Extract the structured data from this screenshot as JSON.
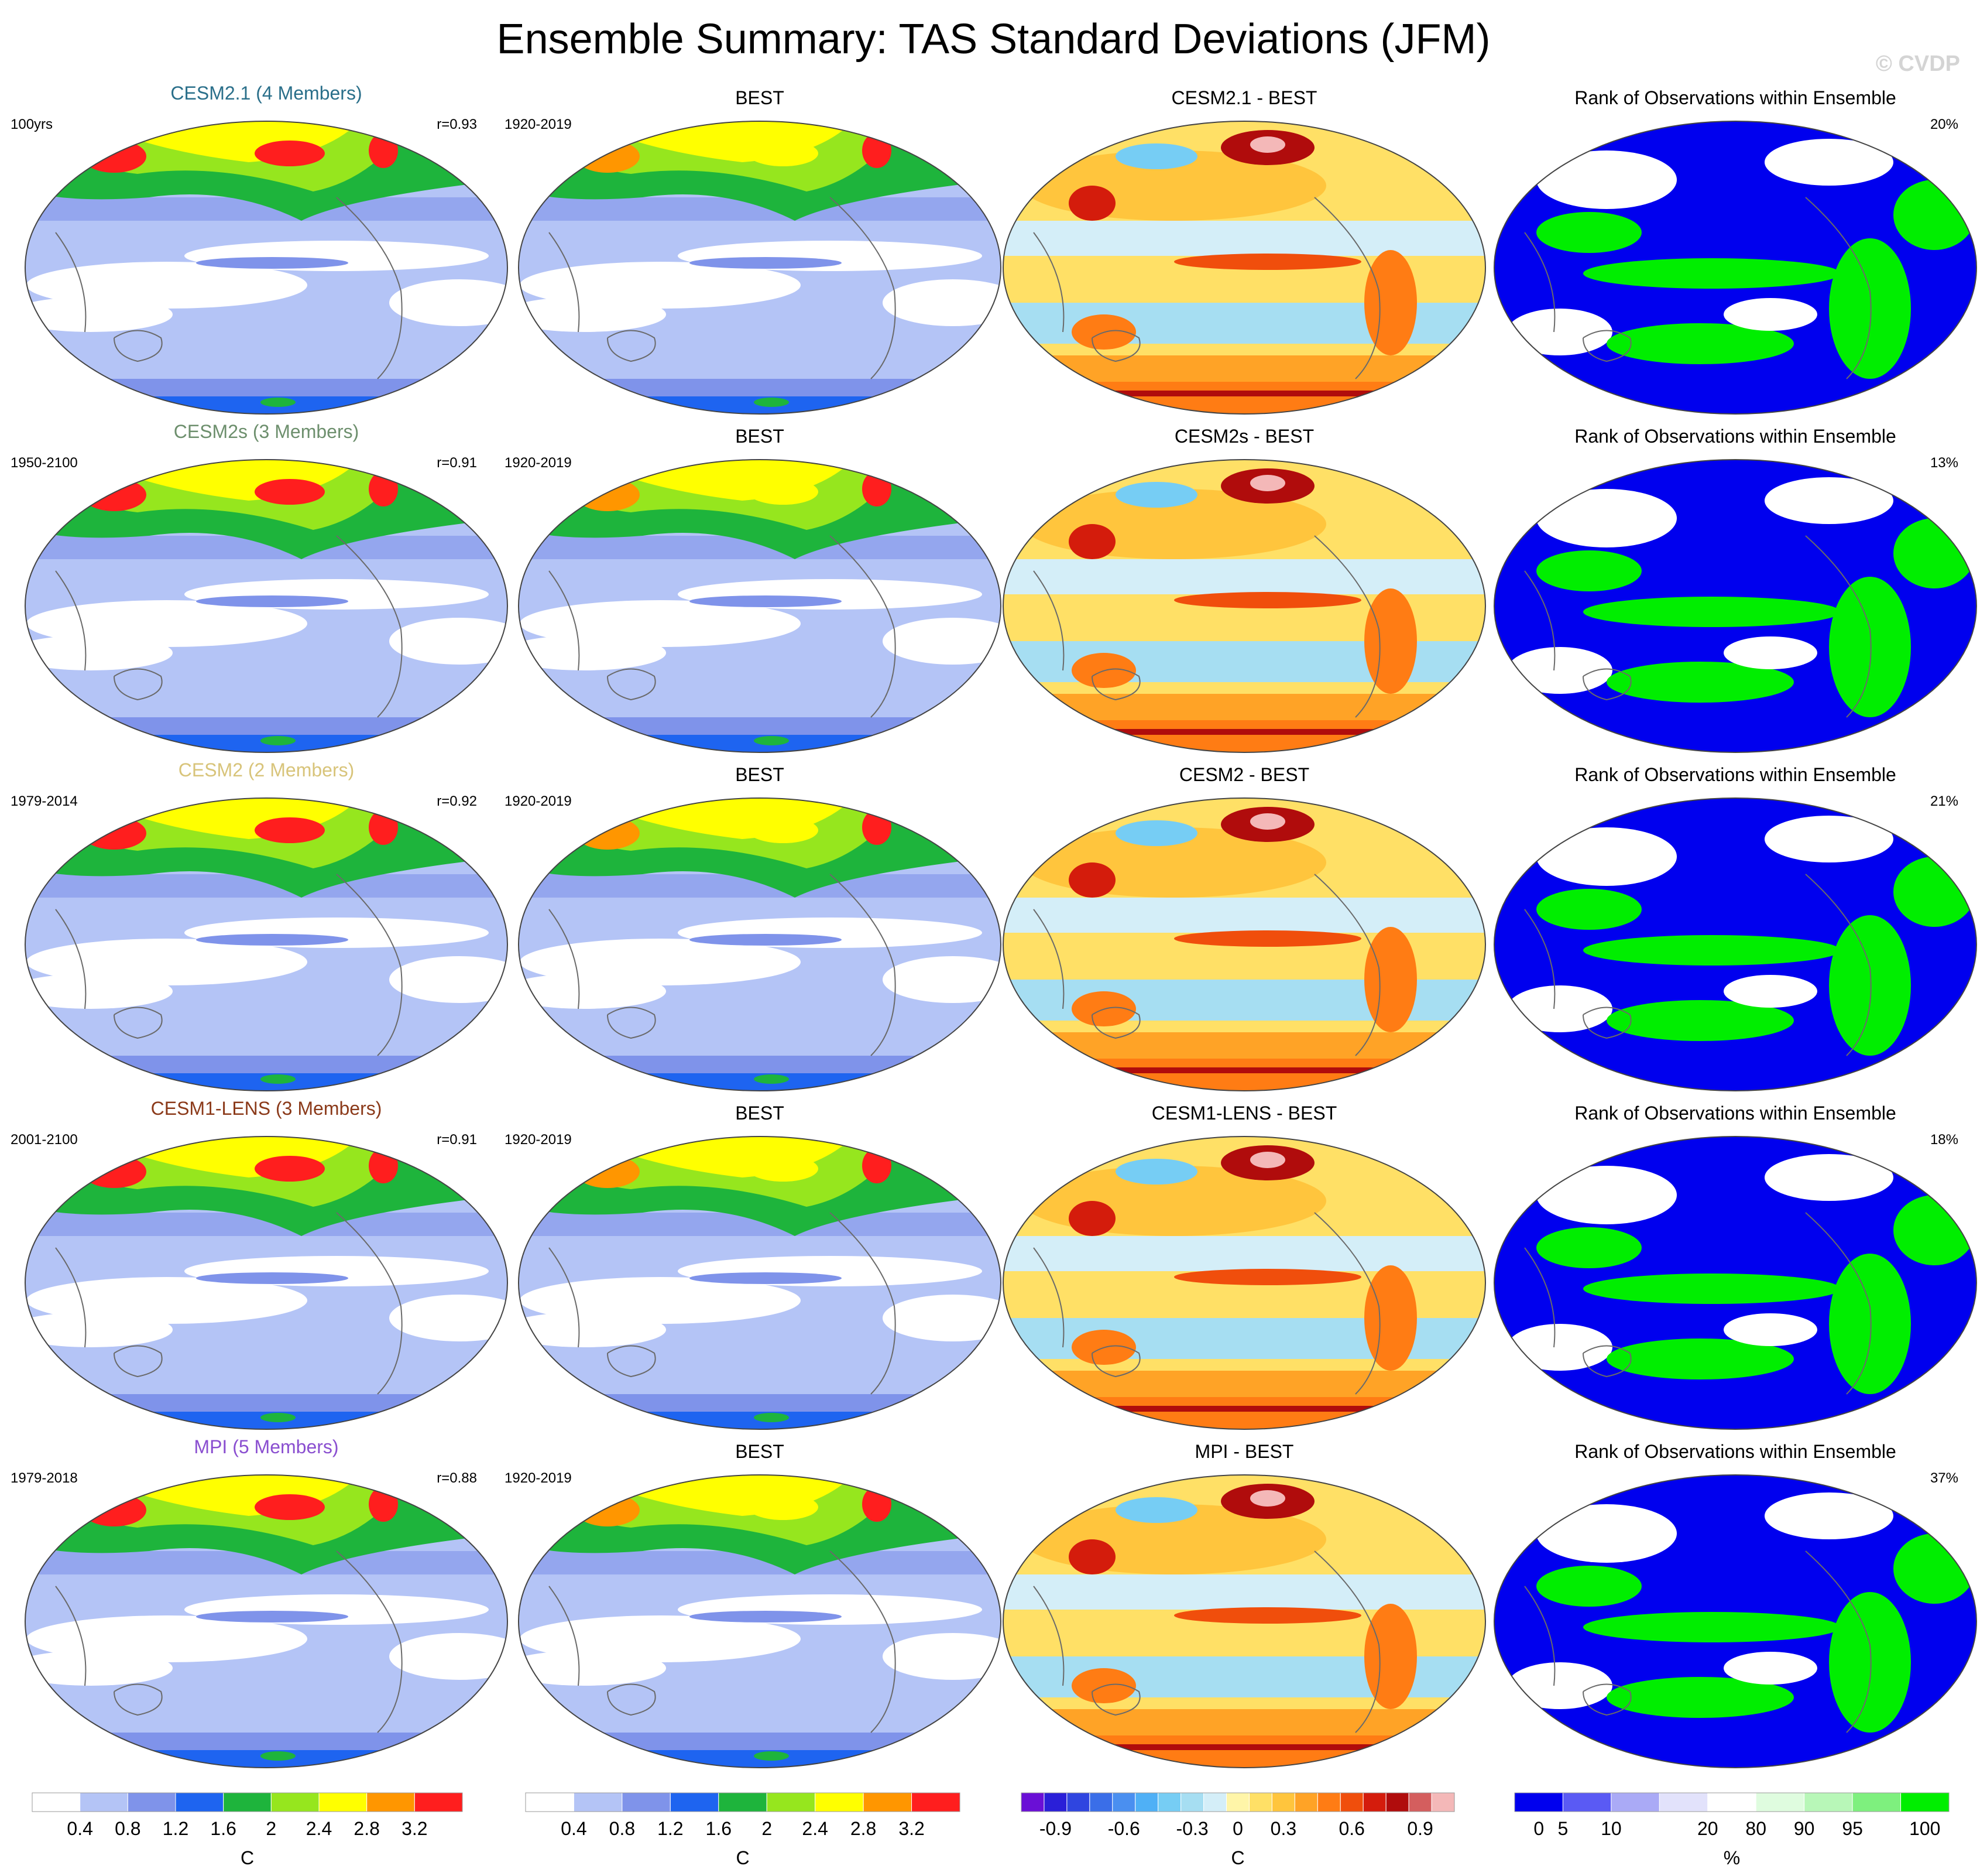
{
  "title": "Ensemble Summary: TAS Standard Deviations (JFM)",
  "watermark": "© CVDP",
  "rows": [
    {
      "model": "CESM2.1 (4 Members)",
      "model_color": "#2a6f8a",
      "period": "100yrs",
      "r": "r=0.93",
      "obs": "BEST",
      "obs_period": "1920-2019",
      "diff_title": "CESM2.1 - BEST",
      "rank_title": "Rank of Observations within Ensemble",
      "rank_pct": "20%"
    },
    {
      "model": "CESM2s (3 Members)",
      "model_color": "#6d8f6d",
      "period": "1950-2100",
      "r": "r=0.91",
      "obs": "BEST",
      "obs_period": "1920-2019",
      "diff_title": "CESM2s - BEST",
      "rank_title": "Rank of Observations within Ensemble",
      "rank_pct": "13%"
    },
    {
      "model": "CESM2 (2 Members)",
      "model_color": "#d8c47a",
      "period": "1979-2014",
      "r": "r=0.92",
      "obs": "BEST",
      "obs_period": "1920-2019",
      "diff_title": "CESM2 - BEST",
      "rank_title": "Rank of Observations within Ensemble",
      "rank_pct": "21%"
    },
    {
      "model": "CESM1-LENS (3 Members)",
      "model_color": "#8b3a1a",
      "period": "2001-2100",
      "r": "r=0.91",
      "obs": "BEST",
      "obs_period": "1920-2019",
      "diff_title": "CESM1-LENS - BEST",
      "rank_title": "Rank of Observations within Ensemble",
      "rank_pct": "18%"
    },
    {
      "model": "MPI (5 Members)",
      "model_color": "#8a4fd0",
      "period": "1979-2018",
      "r": "r=0.88",
      "obs": "BEST",
      "obs_period": "1920-2019",
      "diff_title": "MPI - BEST",
      "rank_title": "Rank of Observations within Ensemble",
      "rank_pct": "37%"
    }
  ],
  "colorbars": [
    {
      "unit": "C",
      "labels": [
        "0.4",
        "0.8",
        "1.2",
        "1.6",
        "2",
        "2.4",
        "2.8",
        "3.2"
      ],
      "colors": [
        "#ffffff",
        "#b4c4f6",
        "#7f93ea",
        "#1e64f0",
        "#1eb43c",
        "#96e61e",
        "#ffff00",
        "#ff9600",
        "#ff1e1e"
      ]
    },
    {
      "unit": "C",
      "labels": [
        "0.4",
        "0.8",
        "1.2",
        "1.6",
        "2",
        "2.4",
        "2.8",
        "3.2"
      ],
      "colors": [
        "#ffffff",
        "#b4c4f6",
        "#7f93ea",
        "#1e64f0",
        "#1eb43c",
        "#96e61e",
        "#ffff00",
        "#ff9600",
        "#ff1e1e"
      ]
    },
    {
      "unit": "C",
      "labels": [
        "-0.9",
        "-0.6",
        "-0.3",
        "0",
        "0.3",
        "0.6",
        "0.9"
      ],
      "colors": [
        "#6a0fd6",
        "#2a1fd8",
        "#2f45e0",
        "#3a6ee8",
        "#4a8ff0",
        "#4fb0f6",
        "#76cdf4",
        "#a6def2",
        "#d4eef8",
        "#fff5a8",
        "#ffe066",
        "#ffc53d",
        "#ffa326",
        "#ff7c14",
        "#f04e0c",
        "#d41c0c",
        "#b00c0c",
        "#d45e5e",
        "#f4b8b8"
      ]
    },
    {
      "unit": "%",
      "labels": [
        "0",
        "5",
        "10",
        "20",
        "80",
        "90",
        "95",
        "100"
      ],
      "colors": [
        "#0000ee",
        "#5a5af4",
        "#aaaaf6",
        "#e2e2fb",
        "#ffffff",
        "#dffcdf",
        "#b8f7b8",
        "#7ef07e",
        "#00ee00"
      ]
    }
  ]
}
